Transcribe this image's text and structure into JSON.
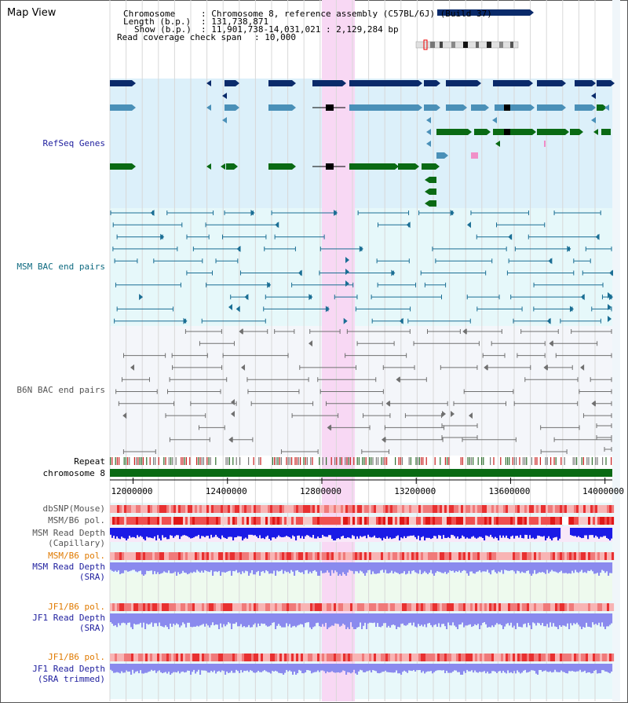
{
  "view_title": "Map View",
  "info": {
    "chromosome_key": "Chromosome",
    "chromosome_val": ": Chromosome 8, reference assembly (C57BL/6J) (Build 37)",
    "length_key": "Length (b.p.)",
    "length_val": ": 131,738,871",
    "show_key": "Show (b.p.)",
    "show_val": ": 11,901,738-14,031,021 : 2,129,284 bp",
    "coverage_key": "Read coverage check span",
    "coverage_val": ": 10,000"
  },
  "tracks": {
    "refseq": "RefSeq Genes",
    "msm_bac": "MSM BAC end pairs",
    "b6n_bac": "B6N BAC end pairs",
    "repeat": "Repeat",
    "chromosome": "chromosome 8",
    "dbsnp": "dbSNP(Mouse)",
    "msm_b6_pol": "MSM/B6 pol.",
    "msm_read_depth_cap_1": "MSM Read Depth",
    "msm_read_depth_cap_2": "(Capillary)",
    "msm_b6_pol_2": "MSM/B6 pol.",
    "msm_read_depth_sra_1": "MSM Read Depth",
    "msm_read_depth_sra_2": "(SRA)",
    "jf1_b6_pol": "JF1/B6 pol.",
    "jf1_read_depth_sra_1": "JF1 Read Depth",
    "jf1_read_depth_sra_2": "(SRA)",
    "jf1_b6_pol_2": "JF1/B6 pol.",
    "jf1_read_depth_trim_1": "JF1 Read Depth",
    "jf1_read_depth_trim_2": "(SRA trimmed)"
  },
  "axis": {
    "ticks": [
      {
        "value": 12000000,
        "label": "12000000"
      },
      {
        "value": 12400000,
        "label": "12400000"
      },
      {
        "value": 12800000,
        "label": "12800000"
      },
      {
        "value": 13200000,
        "label": "13200000"
      },
      {
        "value": 13600000,
        "label": "13600000"
      },
      {
        "value": 14000000,
        "label": "14000000"
      }
    ],
    "range": [
      11901738,
      14031021
    ],
    "highlight": [
      12800000,
      12940000
    ]
  },
  "colors": {
    "refseq_bg": "#dcf0fa",
    "msm_bg": "#e6f8fa",
    "b6n_bg": "#f4f6fa",
    "highlight": "#f8d8f4",
    "gene_dark": "#0a2a6a",
    "gene_mid": "#4a90b8",
    "gene_green": "#0a6a14",
    "msm_pair": "#1a6e94",
    "b6n_pair": "#707070",
    "depth_dark": "#1a1ae6",
    "depth_light": "#8a8aee",
    "pol_red": "#f04040",
    "label_blue": "#1e1e9e",
    "label_teal": "#0e6a80",
    "label_orange": "#e07a00"
  }
}
